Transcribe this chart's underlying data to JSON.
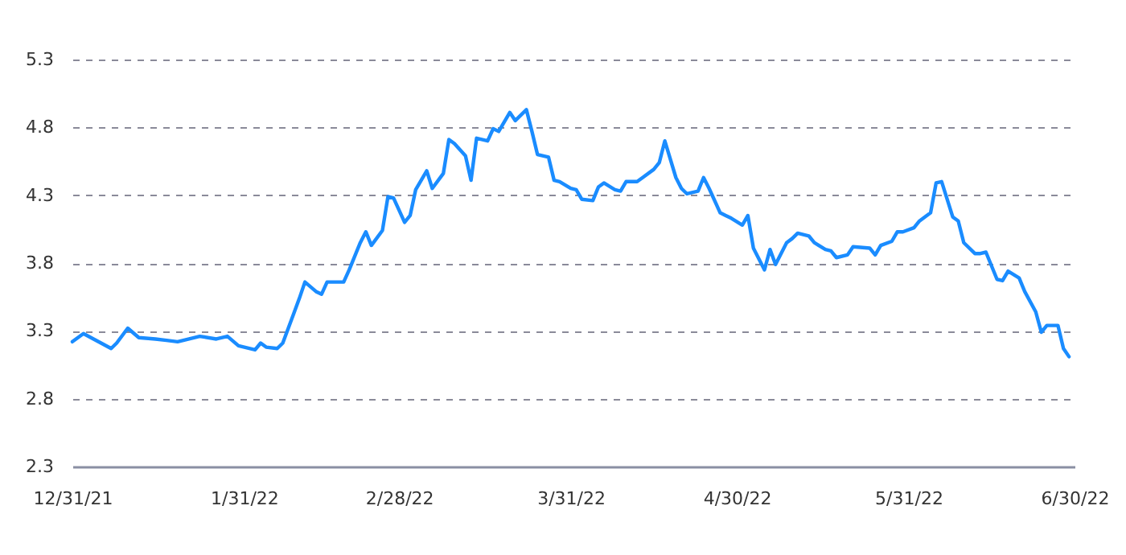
{
  "chart_data": {
    "type": "line",
    "x": [
      "2021-12-31",
      "2022-01-02",
      "2022-01-07",
      "2022-01-08",
      "2022-01-10",
      "2022-01-12",
      "2022-01-15",
      "2022-01-17",
      "2022-01-19",
      "2022-01-23",
      "2022-01-26",
      "2022-01-28",
      "2022-01-30",
      "2022-02-02",
      "2022-02-03",
      "2022-02-04",
      "2022-02-06",
      "2022-02-07",
      "2022-02-09",
      "2022-02-10",
      "2022-02-11",
      "2022-02-13",
      "2022-02-14",
      "2022-02-15",
      "2022-02-18",
      "2022-02-19",
      "2022-02-21",
      "2022-02-22",
      "2022-02-23",
      "2022-02-25",
      "2022-02-26",
      "2022-02-27",
      "2022-03-01",
      "2022-03-02",
      "2022-03-03",
      "2022-03-05",
      "2022-03-06",
      "2022-03-08",
      "2022-03-09",
      "2022-03-10",
      "2022-03-12",
      "2022-03-13",
      "2022-03-14",
      "2022-03-16",
      "2022-03-17",
      "2022-03-18",
      "2022-03-20",
      "2022-03-21",
      "2022-03-23",
      "2022-03-24",
      "2022-03-25",
      "2022-03-27",
      "2022-03-28",
      "2022-03-29",
      "2022-03-31",
      "2022-04-01",
      "2022-04-02",
      "2022-04-04",
      "2022-04-05",
      "2022-04-06",
      "2022-04-08",
      "2022-04-09",
      "2022-04-10",
      "2022-04-12",
      "2022-04-13",
      "2022-04-15",
      "2022-04-16",
      "2022-04-17",
      "2022-04-19",
      "2022-04-20",
      "2022-04-21",
      "2022-04-23",
      "2022-04-24",
      "2022-04-25",
      "2022-04-27",
      "2022-04-28",
      "2022-04-29",
      "2022-05-01",
      "2022-05-02",
      "2022-05-03",
      "2022-05-05",
      "2022-05-06",
      "2022-05-07",
      "2022-05-09",
      "2022-05-10",
      "2022-05-11",
      "2022-05-13",
      "2022-05-14",
      "2022-05-16",
      "2022-05-17",
      "2022-05-18",
      "2022-05-20",
      "2022-05-21",
      "2022-05-24",
      "2022-05-25",
      "2022-05-26",
      "2022-05-28",
      "2022-05-29",
      "2022-05-30",
      "2022-06-01",
      "2022-06-02",
      "2022-06-04",
      "2022-06-05",
      "2022-06-06",
      "2022-06-08",
      "2022-06-09",
      "2022-06-10",
      "2022-06-12",
      "2022-06-13",
      "2022-06-14",
      "2022-06-16",
      "2022-06-17",
      "2022-06-18",
      "2022-06-20",
      "2022-06-21",
      "2022-06-23",
      "2022-06-24",
      "2022-06-25",
      "2022-06-27",
      "2022-06-28",
      "2022-06-29"
    ],
    "series": [
      {
        "color": "#1a8cff",
        "values": [
          3.22,
          3.28,
          3.17,
          3.21,
          3.32,
          3.25,
          3.24,
          3.23,
          3.22,
          3.26,
          3.24,
          3.26,
          3.19,
          3.16,
          3.21,
          3.18,
          3.17,
          3.21,
          3.43,
          3.54,
          3.66,
          3.59,
          3.57,
          3.66,
          3.66,
          3.75,
          3.95,
          4.03,
          3.93,
          4.04,
          4.29,
          4.28,
          4.1,
          4.15,
          4.34,
          4.48,
          4.35,
          4.46,
          4.71,
          4.68,
          4.59,
          4.41,
          4.72,
          4.7,
          4.79,
          4.77,
          4.91,
          4.85,
          4.93,
          4.77,
          4.6,
          4.58,
          4.41,
          4.4,
          4.35,
          4.34,
          4.27,
          4.26,
          4.36,
          4.39,
          4.34,
          4.33,
          4.4,
          4.4,
          4.43,
          4.49,
          4.54,
          4.7,
          4.43,
          4.35,
          4.31,
          4.33,
          4.43,
          4.35,
          4.17,
          4.15,
          4.13,
          4.08,
          4.15,
          3.91,
          3.75,
          3.9,
          3.79,
          3.95,
          3.98,
          4.02,
          4.0,
          3.95,
          3.9,
          3.89,
          3.84,
          3.86,
          3.92,
          3.91,
          3.86,
          3.93,
          3.96,
          4.03,
          4.03,
          4.06,
          4.11,
          4.17,
          4.39,
          4.4,
          4.14,
          4.11,
          3.95,
          3.87,
          3.87,
          3.88,
          3.68,
          3.67,
          3.74,
          3.69,
          3.59,
          3.44,
          3.29,
          3.34,
          3.34,
          3.17,
          3.11
        ]
      }
    ],
    "xlim": [
      "2021-12-31",
      "2022-06-30"
    ],
    "xticks": [
      {
        "value": "2021-12-31",
        "label": "12/31/21"
      },
      {
        "value": "2022-01-31",
        "label": "1/31/22"
      },
      {
        "value": "2022-02-28",
        "label": "2/28/22"
      },
      {
        "value": "2022-03-31",
        "label": "3/31/22"
      },
      {
        "value": "2022-04-30",
        "label": "4/30/22"
      },
      {
        "value": "2022-05-31",
        "label": "5/31/22"
      },
      {
        "value": "2022-06-30",
        "label": "6/30/22"
      }
    ],
    "ylim": [
      2.3,
      5.3
    ],
    "yticks": [
      2.3,
      2.8,
      3.3,
      3.8,
      4.3,
      4.8,
      5.3
    ],
    "grid": "y",
    "line_style": "solid",
    "marker": "none"
  }
}
